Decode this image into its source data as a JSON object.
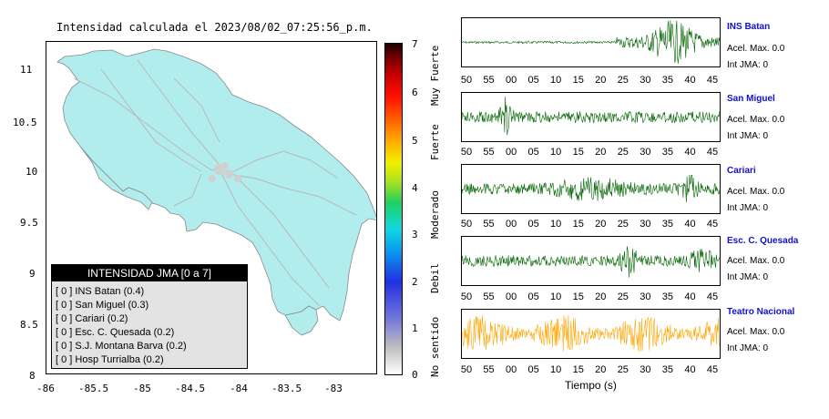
{
  "map": {
    "title": "Intensidad calculada el 2023/08/02_07:25:56_p.m.",
    "y_ticks": [
      "11",
      "10.5",
      "10",
      "9.5",
      "9",
      "8.5",
      "8"
    ],
    "x_ticks": [
      "-86",
      "-85.5",
      "-85",
      "-84.5",
      "-84",
      "-83.5",
      "-83"
    ],
    "land_color": "#b2eded"
  },
  "legend": {
    "title": "INTENSIDAD JMA [0 a 7]",
    "items": [
      {
        "bracket": "[ 0 ]",
        "label": "INS Batan (0.4)"
      },
      {
        "bracket": "[ 0 ]",
        "label": "San Miguel (0.3)"
      },
      {
        "bracket": "[ 0 ]",
        "label": "Cariari (0.2)"
      },
      {
        "bracket": "[ 0 ]",
        "label": "Esc. C. Quesada (0.2)"
      },
      {
        "bracket": "[ 0 ]",
        "label": "S.J. Montana Barva (0.2)"
      },
      {
        "bracket": "[ 0 ]",
        "label": "Hosp Turrialba (0.2)"
      }
    ]
  },
  "colorbar": {
    "numbers": [
      "7",
      "6",
      "5",
      "4",
      "3",
      "2",
      "1",
      "0"
    ],
    "words": [
      "Muy Fuerte",
      "Fuerte",
      "Moderado",
      "Debil",
      "No sentido"
    ]
  },
  "waveforms": {
    "x_label": "Tiempo (s)",
    "stations": [
      {
        "name": "INS Batan",
        "acel": "Acel. Max. 0.0",
        "int": "Int JMA: 0",
        "color": "#006400",
        "ticks": [
          "50",
          "55",
          "00",
          "05",
          "10",
          "15",
          "20",
          "25",
          "30",
          "35",
          "40",
          "45"
        ]
      },
      {
        "name": "San Miguel",
        "acel": "Acel. Max. 0.0",
        "int": "Int JMA: 0",
        "color": "#006400",
        "ticks": [
          "50",
          "55",
          "00",
          "05",
          "10",
          "15",
          "20",
          "25",
          "30",
          "35",
          "40",
          "45"
        ]
      },
      {
        "name": "Cariari",
        "acel": "Acel. Max. 0.0",
        "int": "Int JMA: 0",
        "color": "#006400",
        "ticks": [
          "50",
          "55",
          "00",
          "05",
          "10",
          "15",
          "20",
          "25",
          "30",
          "35",
          "40",
          "45"
        ]
      },
      {
        "name": "Esc. C. Quesada",
        "acel": "Acel. Max. 0.0",
        "int": "Int JMA: 0",
        "color": "#006400",
        "ticks": [
          "50",
          "55",
          "00",
          "05",
          "10",
          "15",
          "20",
          "25",
          "30",
          "35",
          "40",
          "45"
        ]
      },
      {
        "name": "Teatro Nacional",
        "acel": "Acel. Max. 0.0",
        "int": "Int JMA: 0",
        "color": "#ffa500",
        "ticks": [
          "50",
          "55",
          "00",
          "05",
          "10",
          "15",
          "20",
          "25",
          "30",
          "35",
          "40",
          "45"
        ]
      }
    ]
  }
}
